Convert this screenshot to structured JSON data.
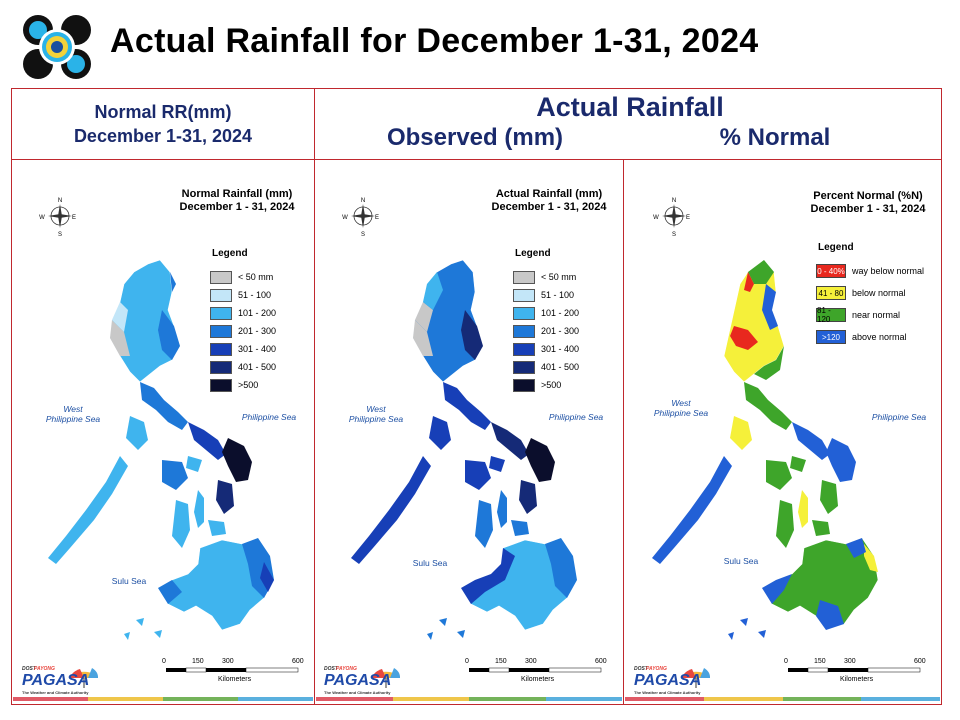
{
  "header": {
    "title": "Actual Rainfall for December 1-31, 2024"
  },
  "col_headers": {
    "normal_line1": "Normal RR(mm)",
    "normal_line2": "December 1-31, 2024",
    "actual": "Actual Rainfall",
    "observed": "Observed (mm)",
    "percent": "% Normal"
  },
  "maps": {
    "normal": {
      "title_line1": "Normal Rainfall (mm)",
      "title_line2": "December 1 - 31, 2024"
    },
    "observed": {
      "title_line1": "Actual Rainfall (mm)",
      "title_line2": "December 1 - 31, 2024"
    },
    "percent": {
      "title_line1": "Percent Normal (%N)",
      "title_line2": "December 1 - 31, 2024"
    }
  },
  "rain_legend": {
    "title": "Legend",
    "items": [
      {
        "label": "< 50 mm",
        "color": "#c8c8c8"
      },
      {
        "label": "51 - 100",
        "color": "#c3e6f8"
      },
      {
        "label": "101 - 200",
        "color": "#3fb4ee"
      },
      {
        "label": "201 - 300",
        "color": "#1e78d8"
      },
      {
        "label": "301 - 400",
        "color": "#173fb7"
      },
      {
        "label": "401 - 500",
        "color": "#152a77"
      },
      {
        "label": ">500",
        "color": "#0b0e2c"
      }
    ]
  },
  "pct_legend": {
    "title": "Legend",
    "items": [
      {
        "swatch": "0 - 40%",
        "label": "way below normal",
        "color": "#e8281e"
      },
      {
        "swatch": "41 - 80",
        "label": "below normal",
        "color": "#f5f03a"
      },
      {
        "swatch": "81 - 120",
        "label": "near normal",
        "color": "#3ea52a"
      },
      {
        "swatch": ">120",
        "label": "above normal",
        "color": "#2260d6"
      }
    ]
  },
  "seas": {
    "west_line1": "West",
    "west_line2": "Philippine Sea",
    "philippine": "Philippine Sea",
    "sulu": "Sulu Sea"
  },
  "compass": {
    "n": "N",
    "s": "S",
    "e": "E",
    "w": "W"
  },
  "scale": {
    "ticks": [
      "0",
      "150",
      "300",
      "600"
    ],
    "unit": "Kilometers"
  },
  "pagasa": {
    "small": "DOST",
    "top": "PAYONG",
    "name": "PAGASA",
    "tagline": "The Weather and Climate Authority"
  },
  "colors": {
    "frame": "#c0282e",
    "heading": "#1a2a6c",
    "sea_label": "#1c4fa3",
    "strip": [
      "#e05a66",
      "#efc64a",
      "#74b35a",
      "#5ab0de"
    ]
  }
}
